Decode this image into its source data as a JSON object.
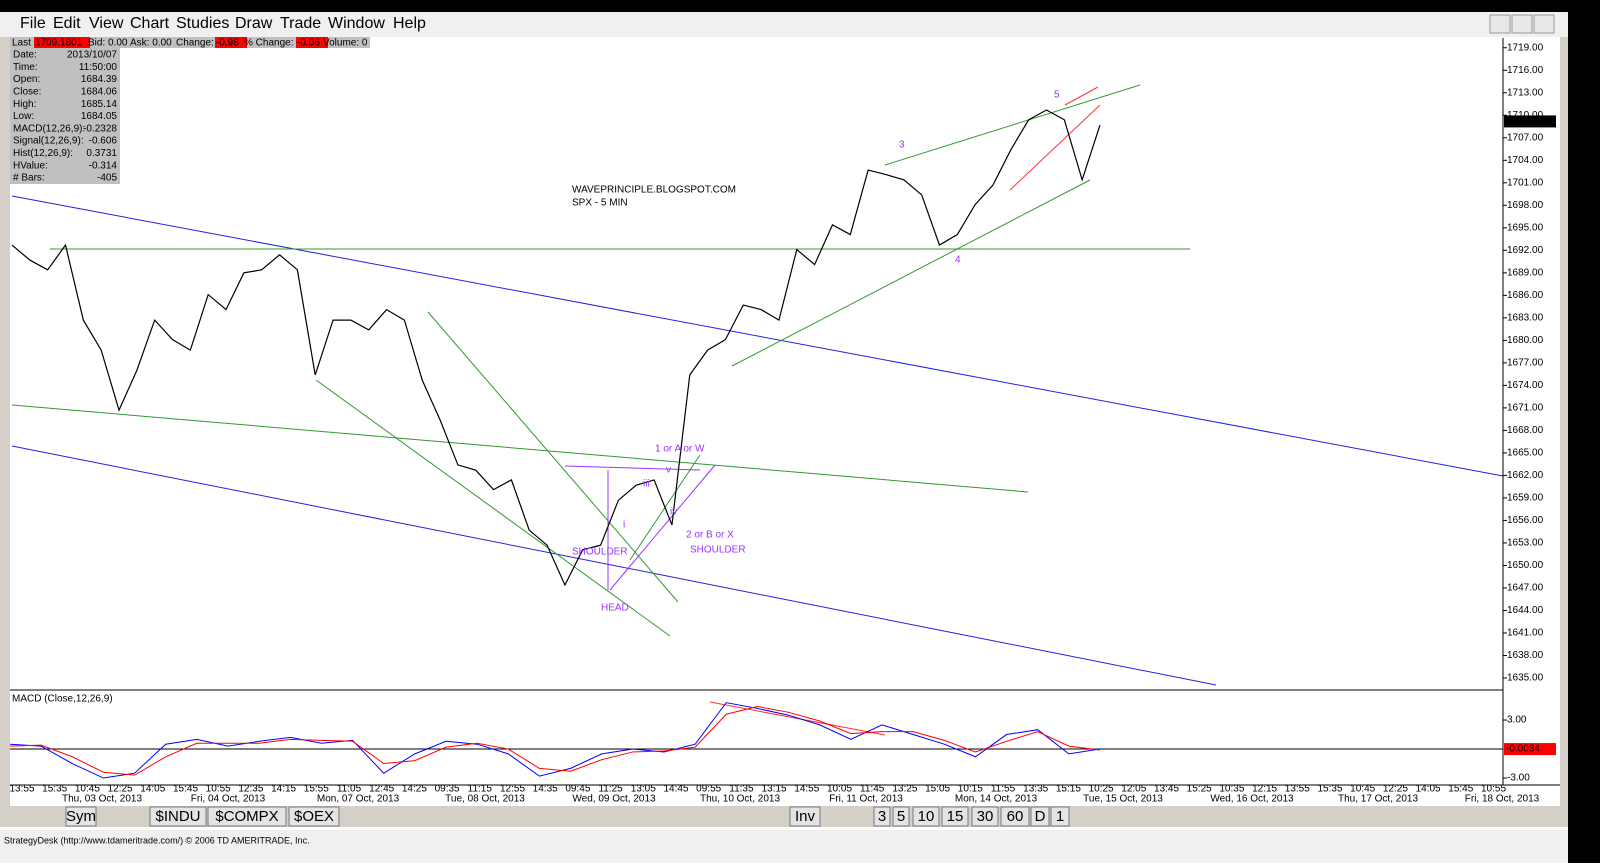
{
  "menu": [
    "File",
    "Edit",
    "View",
    "Chart",
    "Studies",
    "Draw",
    "Trade",
    "Window",
    "Help"
  ],
  "quote_bar": {
    "last_label": "Last",
    "last": "1709.1801",
    "bid": "Bid: 0.00",
    "ask": "Ask: 0.00",
    "change_label": "Change:",
    "change": "-0.98",
    "pct_label": "% Change:",
    "pct": "-0.06",
    "volume": "Volume: 0"
  },
  "info_panel": {
    "rows": [
      [
        "Date:",
        "2013/10/07"
      ],
      [
        "Time:",
        "11:50:00"
      ],
      [
        "Open:",
        "1684.39"
      ],
      [
        "Close:",
        "1684.06"
      ],
      [
        "High:",
        "1685.14"
      ],
      [
        "Low:",
        "1684.05"
      ],
      [
        "MACD(12,26,9):",
        "-0.2328"
      ],
      [
        "Signal(12,26,9):",
        "-0.606"
      ],
      [
        "Hist(12,26,9):",
        "0.3731"
      ],
      [
        "HValue:",
        "-0.314"
      ],
      [
        "# Bars:",
        "-405"
      ]
    ]
  },
  "chart_data": {
    "type": "line",
    "annotations": [
      "WAVEPRINCIPLE.BLOGSPOT.COM",
      "SPX - 5 MIN",
      "3",
      "4",
      "5",
      "1 or A or W",
      "2 or B or X",
      "SHOULDER",
      "SHOULDER",
      "HEAD",
      "i",
      "iii",
      "v",
      "iv"
    ],
    "values": [
      1692.7,
      1690.7,
      1689.4,
      1692.7,
      1682.7,
      1678.7,
      1670.7,
      1676,
      1682.7,
      1680.1,
      1678.7,
      1686.1,
      1684.1,
      1689,
      1689.4,
      1691.4,
      1689.4,
      1675.4,
      1682.7,
      1682.7,
      1681.4,
      1684.1,
      1682.7,
      1674.7,
      1669.4,
      1663.4,
      1662.7,
      1660.1,
      1661.4,
      1654.7,
      1652.7,
      1647.4,
      1652.1,
      1652.7,
      1658.7,
      1660.7,
      1661.4,
      1655.4,
      1675.4,
      1678.7,
      1680.1,
      1684.7,
      1684.1,
      1682.7,
      1692.1,
      1690.1,
      1695.4,
      1694.1,
      1702.7,
      1702.1,
      1701.4,
      1699.4,
      1692.7,
      1694.1,
      1698.1,
      1700.7,
      1705.4,
      1709.4,
      1710.7,
      1709.4,
      1701.4,
      1708.7
    ],
    "ylim": [
      1633.4,
      1720.3
    ],
    "yticks": [
      {
        "value": 1635,
        "label": "1635.00"
      },
      {
        "value": 1638,
        "label": "1638.00"
      },
      {
        "value": 1641,
        "label": "1641.00"
      },
      {
        "value": 1644,
        "label": "1644.00"
      },
      {
        "value": 1647,
        "label": "1647.00"
      },
      {
        "value": 1650,
        "label": "1650.00"
      },
      {
        "value": 1653,
        "label": "1653.00"
      },
      {
        "value": 1656,
        "label": "1656.00"
      },
      {
        "value": 1659,
        "label": "1659.00"
      },
      {
        "value": 1662,
        "label": "1662.00"
      },
      {
        "value": 1665,
        "label": "1665.00"
      },
      {
        "value": 1668,
        "label": "1668.00"
      },
      {
        "value": 1671,
        "label": "1671.00"
      },
      {
        "value": 1674,
        "label": "1674.00"
      },
      {
        "value": 1677,
        "label": "1677.00"
      },
      {
        "value": 1680,
        "label": "1680.00"
      },
      {
        "value": 1683,
        "label": "1683.00"
      },
      {
        "value": 1686,
        "label": "1686.00"
      },
      {
        "value": 1689,
        "label": "1689.00"
      },
      {
        "value": 1692,
        "label": "1692.00"
      },
      {
        "value": 1695,
        "label": "1695.00"
      },
      {
        "value": 1698,
        "label": "1698.00"
      },
      {
        "value": 1701,
        "label": "1701.00"
      },
      {
        "value": 1704,
        "label": "1704.00"
      },
      {
        "value": 1707,
        "label": "1707.00"
      },
      {
        "value": 1710,
        "label": "1710.00"
      },
      {
        "value": 1713,
        "label": "1713.00"
      },
      {
        "value": 1716,
        "label": "1716.00"
      },
      {
        "value": 1719,
        "label": "1719.00"
      }
    ],
    "last_label": "1709.1801",
    "x_time_labels": [
      "13:55",
      "15:35",
      "10:45",
      "12:25",
      "14:05",
      "15:45",
      "10:55",
      "12:35",
      "14:15",
      "15:55",
      "11:05",
      "12:45",
      "14:25",
      "09:35",
      "11:15",
      "12:55",
      "14:35",
      "09:45",
      "11:25",
      "13:05",
      "14:45",
      "09:55",
      "11:35",
      "13:15",
      "14:55",
      "10:05",
      "11:45",
      "13:25",
      "15:05",
      "10:15",
      "11:55",
      "13:35",
      "15:15",
      "10:25",
      "12:05",
      "13:45",
      "15:25",
      "10:35",
      "12:15",
      "13:55",
      "15:35",
      "10:45",
      "12:25",
      "14:05",
      "15:45",
      "10:55"
    ],
    "x_date_labels": [
      "Thu, 03 Oct, 2013",
      "Fri, 04 Oct, 2013",
      "Mon, 07 Oct, 2013",
      "Tue, 08 Oct, 2013",
      "Wed, 09 Oct, 2013",
      "Thu, 10 Oct, 2013",
      "Fri, 11 Oct, 2013",
      "Mon, 14 Oct, 2013",
      "Tue, 15 Oct, 2013",
      "Wed, 16 Oct, 2013",
      "Thu, 17 Oct, 2013",
      "Fri, 18 Oct, 2013"
    ]
  },
  "macd": {
    "title": "MACD (Close,12,26,9)",
    "ylim": [
      -3.72,
      5.9
    ],
    "yticks": [
      {
        "value": 3,
        "label": "3.00"
      },
      {
        "value": -3,
        "label": "-3.00"
      }
    ],
    "series": [
      {
        "color": "#0000ff",
        "values": [
          0.5,
          0.3,
          -1.5,
          -3,
          -2.5,
          0.5,
          1,
          0.3,
          0.8,
          1.2,
          0.6,
          0.9,
          -2.5,
          -0.5,
          0.8,
          0.5,
          -0.5,
          -2.8,
          -2,
          -0.5,
          0,
          -0.3,
          0.5,
          4.8,
          4.2,
          3.5,
          2.5,
          1,
          2.5,
          1.5,
          0.5,
          -0.8,
          1.5,
          2,
          -0.5,
          0
        ]
      },
      {
        "color": "#ff0000",
        "values": [
          0.3,
          0.4,
          -0.8,
          -2.4,
          -2.7,
          -0.8,
          0.6,
          0.6,
          0.6,
          1,
          0.9,
          0.8,
          -1.5,
          -1.2,
          0.2,
          0.6,
          0,
          -2,
          -2.3,
          -1.1,
          -0.3,
          -0.2,
          0.2,
          3.6,
          4.4,
          3.8,
          2.9,
          1.6,
          1.8,
          1.8,
          0.9,
          -0.3,
          0.8,
          1.8,
          0.3,
          -0.1
        ]
      }
    ],
    "current_label": "-0.0034"
  },
  "tabs": [
    "Sym",
    "$INDU",
    "$COMPX",
    "$OEX",
    "Inv",
    "3",
    "5",
    "10",
    "15",
    "30",
    "60",
    "D",
    "1"
  ],
  "status": "StrategyDesk (http://www.tdameritrade.com/) © 2006 TD AMERITRADE, Inc."
}
